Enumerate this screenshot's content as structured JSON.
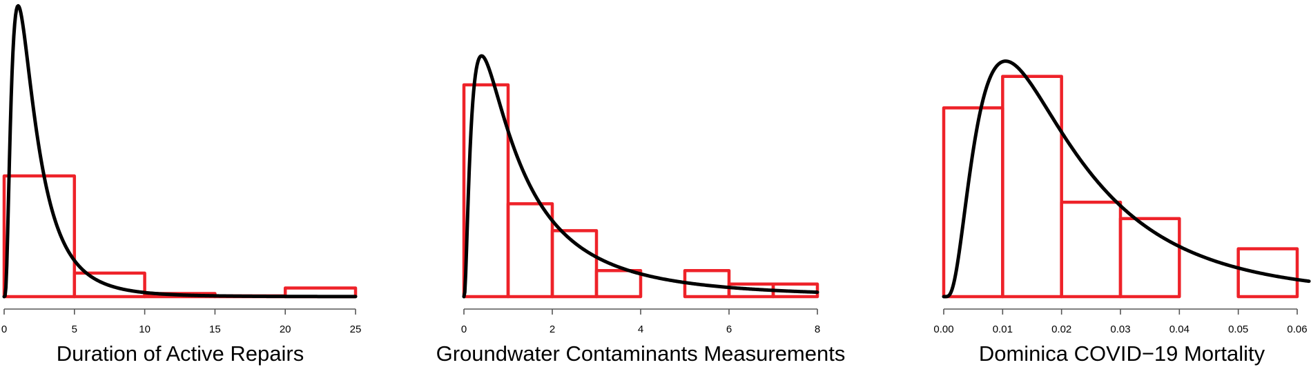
{
  "chart_data": [
    {
      "type": "bar",
      "subtype": "histogram-with-density",
      "title": "",
      "xlabel": "Duration of Active Repairs",
      "ylabel": "",
      "xlim": [
        0,
        25
      ],
      "ylim": [
        0,
        0.375
      ],
      "xticks": [
        0,
        5,
        10,
        15,
        20,
        25
      ],
      "xtick_labels": [
        "0",
        "5",
        "10",
        "15",
        "20",
        "25"
      ],
      "bins": [
        [
          0,
          5
        ],
        [
          5,
          10
        ],
        [
          10,
          15
        ],
        [
          15,
          20
        ],
        [
          20,
          25
        ]
      ],
      "values": [
        0.154,
        0.03,
        0.004,
        0.001,
        0.011
      ],
      "curve": {
        "dist": "lognormal",
        "meanlog": 0.62,
        "sdlog": 0.79,
        "x_range": [
          0,
          25
        ]
      },
      "colors": {
        "bars": "#EE2229",
        "curve": "#000000"
      },
      "grid": false
    },
    {
      "type": "bar",
      "subtype": "histogram-with-density",
      "title": "",
      "xlabel": "Groundwater Contaminants Measurements",
      "ylabel": "",
      "xlim": [
        0,
        8
      ],
      "ylim": [
        0,
        0.655
      ],
      "xticks": [
        0,
        2,
        4,
        6,
        8
      ],
      "xtick_labels": [
        "0",
        "2",
        "4",
        "6",
        "8"
      ],
      "bins": [
        [
          0,
          1
        ],
        [
          1,
          2
        ],
        [
          2,
          3
        ],
        [
          3,
          4
        ],
        [
          4,
          5
        ],
        [
          5,
          6
        ],
        [
          6,
          7
        ],
        [
          7,
          8
        ]
      ],
      "values": [
        0.472,
        0.207,
        0.147,
        0.058,
        0.0,
        0.058,
        0.028,
        0.028
      ],
      "curve": {
        "dist": "lognormal",
        "meanlog": 0.207,
        "sdlog": 1.06,
        "x_range": [
          0,
          8
        ]
      },
      "colors": {
        "bars": "#EE2229",
        "curve": "#000000"
      },
      "grid": false
    },
    {
      "type": "bar",
      "subtype": "histogram-with-density",
      "title": "",
      "xlabel": "Dominica COVID−19 Mortality",
      "ylabel": "",
      "xlim": [
        0,
        0.06
      ],
      "ylim": [
        0,
        46.7
      ],
      "xticks": [
        0,
        0.01,
        0.02,
        0.03,
        0.04,
        0.05,
        0.06
      ],
      "xtick_labels": [
        "0.00",
        "0.01",
        "0.02",
        "0.03",
        "0.04",
        "0.05",
        "0.06"
      ],
      "bins": [
        [
          0,
          0.01
        ],
        [
          0.01,
          0.02
        ],
        [
          0.02,
          0.03
        ],
        [
          0.03,
          0.04
        ],
        [
          0.04,
          0.05
        ],
        [
          0.05,
          0.06
        ]
      ],
      "values": [
        30.0,
        35.0,
        15.0,
        12.4,
        0.0,
        7.6
      ],
      "curve": {
        "dist": "lognormal",
        "meanlog": -3.978,
        "sdlog": 0.76,
        "x_range": [
          0,
          0.062
        ]
      },
      "colors": {
        "bars": "#EE2229",
        "curve": "#000000"
      },
      "grid": false
    }
  ]
}
